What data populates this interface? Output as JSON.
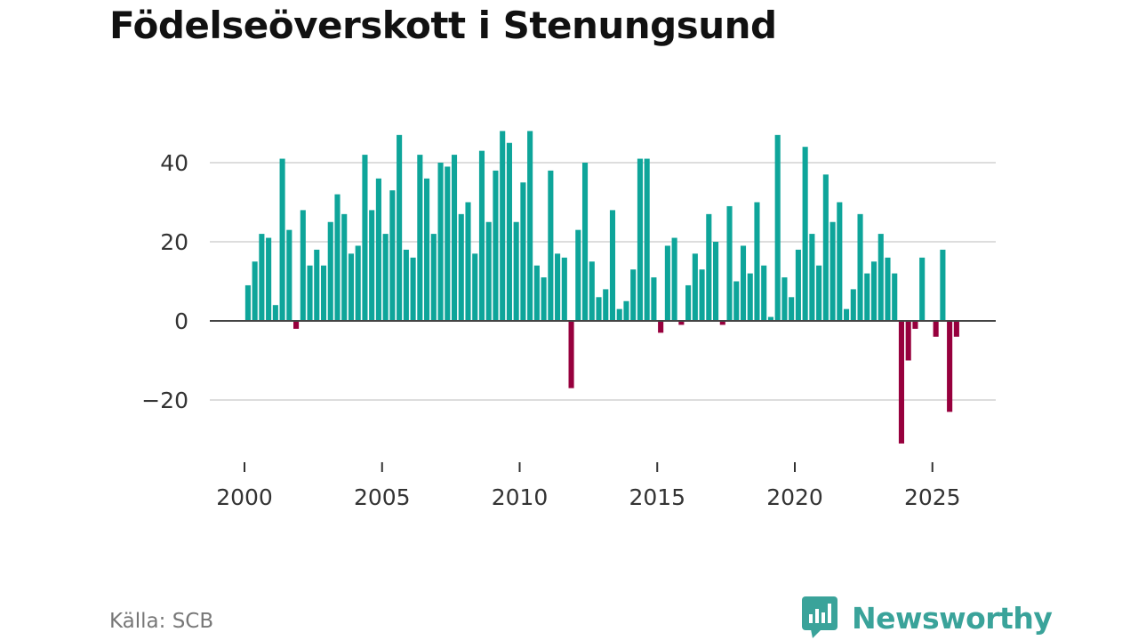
{
  "title": "Födelseöverskott i Stenungsund",
  "source": "Källa: SCB",
  "brand": "Newsworthy",
  "icon": "newsworthy-logo-icon",
  "colors": {
    "positive": "#0ea59a",
    "negative": "#97003d",
    "grid": "#dddddd",
    "zero_line": "#444444",
    "brand": "#3aa39a"
  },
  "chart_data": {
    "type": "bar",
    "title": "Födelseöverskott i Stenungsund",
    "xlabel": "",
    "ylabel": "",
    "x_start": 2000,
    "x_step": 0.25,
    "xlim": [
      1999.5,
      2027.0
    ],
    "ylim": [
      -33,
      50
    ],
    "x_ticks": [
      2000,
      2005,
      2010,
      2015,
      2020,
      2025
    ],
    "y_ticks": [
      -20,
      0,
      20,
      40
    ],
    "y_tick_labels": [
      "−20",
      "0",
      "20",
      "40"
    ],
    "grid": true,
    "values": [
      9,
      15,
      22,
      21,
      4,
      41,
      23,
      -2,
      28,
      14,
      18,
      14,
      25,
      32,
      27,
      17,
      19,
      42,
      28,
      36,
      22,
      33,
      47,
      18,
      16,
      42,
      36,
      22,
      40,
      39,
      42,
      27,
      30,
      17,
      43,
      25,
      38,
      48,
      45,
      25,
      35,
      48,
      14,
      11,
      38,
      17,
      16,
      -17,
      23,
      40,
      15,
      6,
      8,
      28,
      3,
      5,
      13,
      41,
      41,
      11,
      -3,
      19,
      21,
      -1,
      9,
      17,
      13,
      27,
      20,
      -1,
      29,
      10,
      19,
      12,
      30,
      14,
      1,
      47,
      11,
      6,
      18,
      44,
      22,
      14,
      37,
      25,
      30,
      3,
      8,
      27,
      12,
      15,
      22,
      16,
      12,
      -31,
      -10,
      -2,
      16,
      0,
      -4,
      18,
      -23,
      -4
    ]
  }
}
